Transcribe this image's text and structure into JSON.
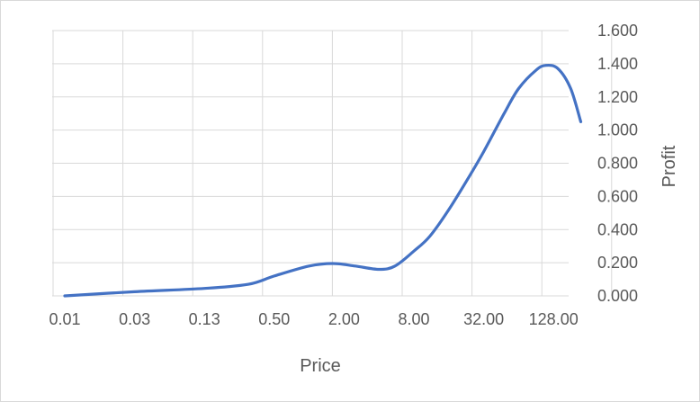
{
  "chart_data": {
    "type": "line",
    "title": "",
    "xlabel": "Price",
    "ylabel": "Profit",
    "x_scale": "log2",
    "x_ticks": [
      "0.01",
      "0.03",
      "0.13",
      "0.50",
      "2.00",
      "8.00",
      "32.00",
      "128.00"
    ],
    "x_tick_values": [
      0.0078125,
      0.03125,
      0.125,
      0.5,
      2,
      8,
      32,
      128
    ],
    "y_ticks": [
      "0.000",
      "0.200",
      "0.400",
      "0.600",
      "0.800",
      "1.000",
      "1.200",
      "1.400",
      "1.600"
    ],
    "ylim": [
      0,
      1.6
    ],
    "y_axis_side": "right",
    "grid": true,
    "legend": "none",
    "series": [
      {
        "color": "#4472c4",
        "points": [
          {
            "x": 0.0078125,
            "y": 0.0
          },
          {
            "x": 0.03125,
            "y": 0.025
          },
          {
            "x": 0.125,
            "y": 0.045
          },
          {
            "x": 0.3,
            "y": 0.07
          },
          {
            "x": 0.5,
            "y": 0.12
          },
          {
            "x": 1.0,
            "y": 0.18
          },
          {
            "x": 1.6,
            "y": 0.195
          },
          {
            "x": 2.5,
            "y": 0.18
          },
          {
            "x": 4.0,
            "y": 0.16
          },
          {
            "x": 5.5,
            "y": 0.18
          },
          {
            "x": 8.0,
            "y": 0.27
          },
          {
            "x": 11.0,
            "y": 0.36
          },
          {
            "x": 16.0,
            "y": 0.52
          },
          {
            "x": 24.0,
            "y": 0.72
          },
          {
            "x": 32.0,
            "y": 0.87
          },
          {
            "x": 48.0,
            "y": 1.1
          },
          {
            "x": 64.0,
            "y": 1.25
          },
          {
            "x": 90.0,
            "y": 1.36
          },
          {
            "x": 110.0,
            "y": 1.39
          },
          {
            "x": 140.0,
            "y": 1.37
          },
          {
            "x": 180.0,
            "y": 1.25
          },
          {
            "x": 220.0,
            "y": 1.05
          }
        ]
      }
    ]
  }
}
